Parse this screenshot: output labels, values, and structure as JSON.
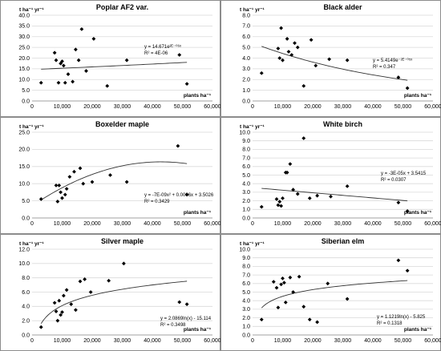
{
  "chart_data": [
    {
      "type": "scatter",
      "title": "Poplar AF2 var.",
      "ylabel": "t ha⁻¹ yr⁻¹",
      "xlabel": "plants ha⁻¹",
      "xlim": [
        0,
        60000
      ],
      "ylim": [
        0,
        40
      ],
      "yticks": [
        "0.0",
        "5.0",
        "10.0",
        "15.0",
        "20.0",
        "25.0",
        "30.0",
        "35.0",
        "40.0"
      ],
      "xticks": [
        "0",
        "10,000",
        "20,000",
        "30,000",
        "40,000",
        "50,000",
        "60,000"
      ],
      "points": [
        [
          3000,
          8.5
        ],
        [
          7500,
          22.5
        ],
        [
          8000,
          19
        ],
        [
          8800,
          8.5
        ],
        [
          9500,
          17.5
        ],
        [
          10000,
          18.5
        ],
        [
          10500,
          16.5
        ],
        [
          11000,
          8.5
        ],
        [
          12000,
          12.5
        ],
        [
          13500,
          9.0
        ],
        [
          14500,
          24
        ],
        [
          15500,
          19
        ],
        [
          16500,
          33.5
        ],
        [
          18000,
          14
        ],
        [
          20500,
          29
        ],
        [
          25000,
          7
        ],
        [
          31500,
          19
        ],
        [
          49000,
          21.5
        ],
        [
          51500,
          8.0
        ]
      ],
      "trendline": {
        "kind": "exponential",
        "a": 14.671,
        "b": 4e-06
      },
      "equation": [
        "y = 14.671e²ᴱ⁻⁰⁶ˣ",
        "R² = 4E-06"
      ]
    },
    {
      "type": "scatter",
      "title": "Black alder",
      "ylabel": "t ha⁻¹ yr⁻¹",
      "xlabel": "plants ha⁻¹",
      "xlim": [
        0,
        60000
      ],
      "ylim": [
        0,
        8
      ],
      "yticks": [
        "0.0",
        "1.0",
        "2.0",
        "3.0",
        "4.0",
        "5.0",
        "6.0",
        "7.0",
        "8.0"
      ],
      "xticks": [
        "0",
        "10,000",
        "20,000",
        "30,000",
        "40,000",
        "50,000",
        "60,000"
      ],
      "points": [
        [
          3000,
          2.6
        ],
        [
          8500,
          4.9
        ],
        [
          9000,
          4.0
        ],
        [
          9500,
          6.8
        ],
        [
          10000,
          3.8
        ],
        [
          11500,
          5.8
        ],
        [
          12000,
          4.6
        ],
        [
          13000,
          4.3
        ],
        [
          14000,
          5.4
        ],
        [
          15000,
          5.0
        ],
        [
          17000,
          1.4
        ],
        [
          19500,
          5.7
        ],
        [
          21000,
          3.3
        ],
        [
          25500,
          3.9
        ],
        [
          31500,
          3.8
        ],
        [
          48500,
          2.2
        ],
        [
          51500,
          1.2
        ]
      ],
      "trendline": {
        "kind": "exponential",
        "a": 5.4149,
        "b": -2e-05
      },
      "equation": [
        "y = 5.4149e⁻²ᴱ⁻⁰⁵ˣ",
        "R² = 0.347"
      ]
    },
    {
      "type": "scatter",
      "title": "Boxelder maple",
      "ylabel": "t ha⁻¹ yr⁻¹",
      "xlabel": "plants ha⁻¹",
      "xlim": [
        0,
        60000
      ],
      "ylim": [
        0,
        25
      ],
      "yticks": [
        "0.0",
        "5.0",
        "10.0",
        "15.0",
        "20.0",
        "25.0"
      ],
      "xticks": [
        "0",
        "10,000",
        "20,000",
        "30,000",
        "40,000",
        "50,000",
        "60,000"
      ],
      "points": [
        [
          3000,
          5.5
        ],
        [
          8000,
          9.5
        ],
        [
          8500,
          4.8
        ],
        [
          9000,
          9.5
        ],
        [
          9500,
          7.5
        ],
        [
          10000,
          5.8
        ],
        [
          11000,
          6.8
        ],
        [
          11500,
          8.5
        ],
        [
          12500,
          12.0
        ],
        [
          14000,
          13.5
        ],
        [
          16000,
          14.5
        ],
        [
          17000,
          10.0
        ],
        [
          20000,
          10.5
        ],
        [
          26000,
          12.5
        ],
        [
          31500,
          10.5
        ],
        [
          48500,
          21.0
        ],
        [
          51500,
          6.8
        ]
      ],
      "trendline": {
        "kind": "polynomial",
        "c2": -7e-09,
        "c1": 0.0006,
        "c0": 3.5026
      },
      "equation": [
        "y = -7E-09x² + 0.0006x + 3.5026",
        "R² = 0.3429"
      ]
    },
    {
      "type": "scatter",
      "title": "White birch",
      "ylabel": "t ha⁻¹ yr⁻¹",
      "xlabel": "plants ha⁻¹",
      "xlim": [
        0,
        60000
      ],
      "ylim": [
        0,
        10
      ],
      "yticks": [
        "0.0",
        "1.0",
        "2.0",
        "3.0",
        "4.0",
        "5.0",
        "6.0",
        "7.0",
        "8.0",
        "9.0",
        "10.0"
      ],
      "xticks": [
        "0",
        "10,000",
        "20,000",
        "30,000",
        "40,000",
        "50,000",
        "60,000"
      ],
      "points": [
        [
          3000,
          1.3
        ],
        [
          8000,
          2.2
        ],
        [
          8500,
          1.5
        ],
        [
          9000,
          1.9
        ],
        [
          9500,
          1.4
        ],
        [
          10000,
          2.3
        ],
        [
          11000,
          5.3
        ],
        [
          11500,
          5.3
        ],
        [
          12500,
          6.3
        ],
        [
          13500,
          3.3
        ],
        [
          15000,
          2.8
        ],
        [
          17000,
          9.3
        ],
        [
          19000,
          2.3
        ],
        [
          21500,
          2.6
        ],
        [
          26000,
          2.5
        ],
        [
          31500,
          3.7
        ],
        [
          48500,
          1.8
        ],
        [
          51500,
          0.8
        ]
      ],
      "trendline": {
        "kind": "linear",
        "m": -3e-05,
        "b": 3.5415
      },
      "equation": [
        "y = -3E-05x + 3.5415",
        "R² = 0.0307"
      ]
    },
    {
      "type": "scatter",
      "title": "Silver maple",
      "ylabel": "t ha⁻¹ yr⁻¹",
      "xlabel": "plants ha⁻¹",
      "xlim": [
        0,
        60000
      ],
      "ylim": [
        0,
        12
      ],
      "yticks": [
        "0.0",
        "2.0",
        "4.0",
        "6.0",
        "8.0",
        "10.0",
        "12.0"
      ],
      "xticks": [
        "0",
        "10,000",
        "20,000",
        "30,000",
        "40,000",
        "50,000",
        "60,000"
      ],
      "points": [
        [
          3000,
          1.1
        ],
        [
          7500,
          4.5
        ],
        [
          8000,
          3.3
        ],
        [
          8500,
          2.0
        ],
        [
          9000,
          4.8
        ],
        [
          9500,
          2.8
        ],
        [
          10000,
          3.2
        ],
        [
          10500,
          5.5
        ],
        [
          11500,
          6.3
        ],
        [
          13000,
          4.3
        ],
        [
          14500,
          3.5
        ],
        [
          16000,
          7.5
        ],
        [
          17500,
          7.8
        ],
        [
          19500,
          6.0
        ],
        [
          25500,
          7.6
        ],
        [
          30500,
          10.0
        ],
        [
          49000,
          4.6
        ],
        [
          51500,
          4.3
        ]
      ],
      "trendline": {
        "kind": "logarithmic",
        "a": 2.0869,
        "b": -15.114
      },
      "equation": [
        "y = 2.0869ln(x) - 15.114",
        "R² = 0.3498"
      ]
    },
    {
      "type": "scatter",
      "title": "Siberian elm",
      "ylabel": "t ha⁻¹ yr⁻¹",
      "xlabel": "plants ha⁻¹",
      "xlim": [
        0,
        60000
      ],
      "ylim": [
        0,
        10
      ],
      "yticks": [
        "0.0",
        "1.0",
        "2.0",
        "3.0",
        "4.0",
        "5.0",
        "6.0",
        "7.0",
        "8.0",
        "9.0",
        "10.0"
      ],
      "xticks": [
        "0",
        "10,000",
        "20,000",
        "30,000",
        "40,000",
        "50,000",
        "60,000"
      ],
      "points": [
        [
          3000,
          1.8
        ],
        [
          7000,
          6.2
        ],
        [
          8000,
          5.5
        ],
        [
          8500,
          3.2
        ],
        [
          9500,
          5.9
        ],
        [
          10000,
          6.6
        ],
        [
          10500,
          6.1
        ],
        [
          11000,
          3.8
        ],
        [
          12500,
          6.7
        ],
        [
          13500,
          5.0
        ],
        [
          15500,
          6.8
        ],
        [
          17000,
          3.3
        ],
        [
          19000,
          1.8
        ],
        [
          21500,
          1.5
        ],
        [
          25000,
          6.0
        ],
        [
          31500,
          4.2
        ],
        [
          48500,
          8.7
        ],
        [
          51500,
          7.5
        ]
      ],
      "trendline": {
        "kind": "logarithmic",
        "a": 1.1219,
        "b": -5.825
      },
      "equation": [
        "y = 1.1219ln(x) - 5.825",
        "R² = 0.1318"
      ]
    }
  ]
}
